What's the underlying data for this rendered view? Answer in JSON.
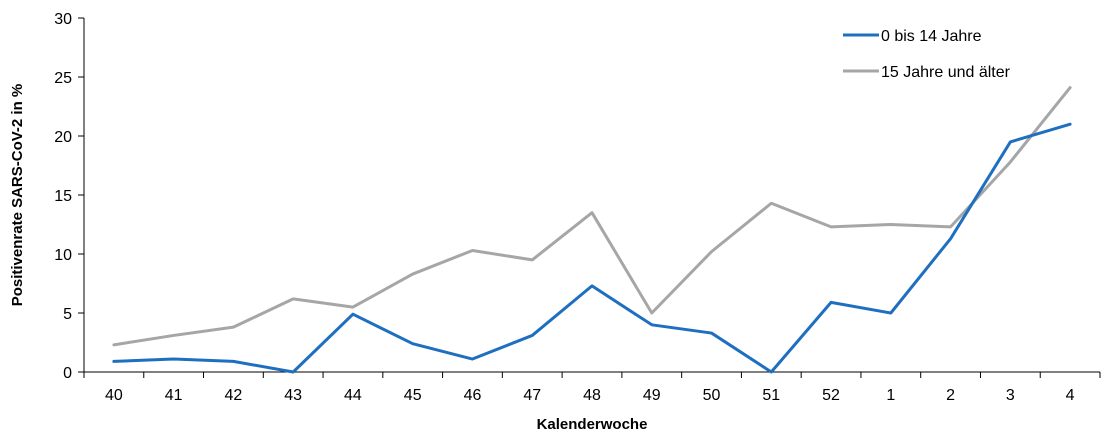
{
  "chart_data": {
    "type": "line",
    "title": "",
    "xlabel": "Kalenderwoche",
    "ylabel": "Positivenrate SARS-CoV-2 in %",
    "ylim": [
      0,
      30
    ],
    "yticks": [
      0,
      5,
      10,
      15,
      20,
      25,
      30
    ],
    "categories": [
      "40",
      "41",
      "42",
      "43",
      "44",
      "45",
      "46",
      "47",
      "48",
      "49",
      "50",
      "51",
      "52",
      "1",
      "2",
      "3",
      "4"
    ],
    "grid": false,
    "legend_position": "top-right",
    "series": [
      {
        "name": "0 bis 14 Jahre",
        "color": "#1f6fc0",
        "values": [
          0.9,
          1.1,
          0.9,
          0.0,
          4.9,
          2.4,
          1.1,
          3.1,
          7.3,
          4.0,
          3.3,
          0.0,
          5.9,
          5.0,
          11.3,
          19.5,
          21.0
        ]
      },
      {
        "name": "15 Jahre und älter",
        "color": "#a6a6a6",
        "values": [
          2.3,
          3.1,
          3.8,
          6.2,
          5.5,
          8.3,
          10.3,
          9.5,
          13.5,
          5.0,
          10.2,
          14.3,
          12.3,
          12.5,
          12.3,
          17.8,
          24.1
        ]
      }
    ]
  }
}
